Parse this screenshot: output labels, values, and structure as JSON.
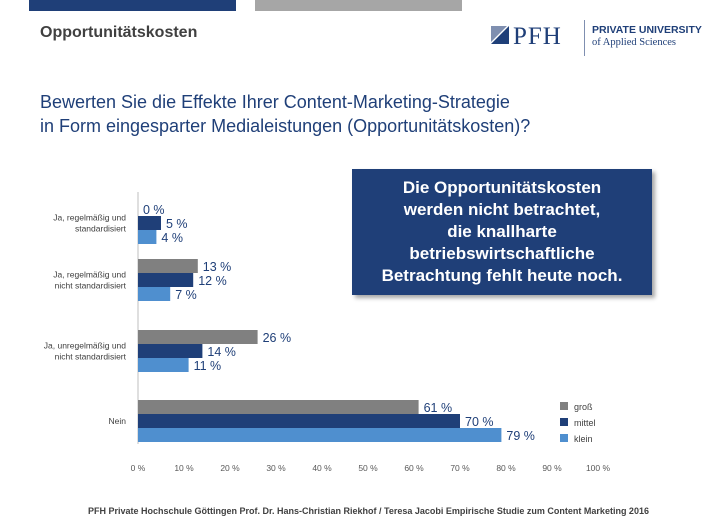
{
  "header": {
    "title": "Opportunitätskosten"
  },
  "logo": {
    "name": "PFH",
    "line1": "PRIVATE UNIVERSITY",
    "line2": "of Applied Sciences"
  },
  "question": {
    "line1": "Bewerten Sie die Effekte Ihrer Content-Marketing-Strategie",
    "line2": "in Form eingesparter Medialeistungen (Opportunitätskosten)?"
  },
  "callout": {
    "lines": [
      "Die Opportunitätskosten",
      "werden nicht betrachtet,",
      "die knallharte",
      "betriebswirtschaftliche",
      "Betrachtung fehlt heute noch."
    ]
  },
  "chart_data": {
    "type": "bar",
    "orientation": "horizontal",
    "categories": [
      [
        "Ja, regelmäßig und",
        "standardisiert"
      ],
      [
        "Ja, regelmäßig und",
        "nicht standardisiert"
      ],
      [
        "Ja, unregelmäßig und",
        "nicht standardisiert"
      ],
      [
        "Nein"
      ]
    ],
    "series": [
      {
        "name": "groß",
        "color": "#808080",
        "values": [
          0,
          13,
          26,
          61
        ]
      },
      {
        "name": "mittel",
        "color": "#1f3f78",
        "values": [
          5,
          12,
          14,
          70
        ]
      },
      {
        "name": "klein",
        "color": "#4f8fcf",
        "values": [
          4,
          7,
          11,
          79
        ]
      }
    ],
    "value_suffix": " %",
    "xlim": [
      0,
      100
    ],
    "xticks": [
      "0 %",
      "10 %",
      "20 %",
      "30 %",
      "40 %",
      "50 %",
      "60 %",
      "70 %",
      "80 %",
      "90 %",
      "100 %"
    ],
    "grid": false,
    "legend": "bottom-right"
  },
  "footer": {
    "text": "PFH Private Hochschule Göttingen Prof. Dr. Hans-Christian Riekhof / Teresa Jacobi Empirische Studie zum Content Marketing  2016"
  }
}
